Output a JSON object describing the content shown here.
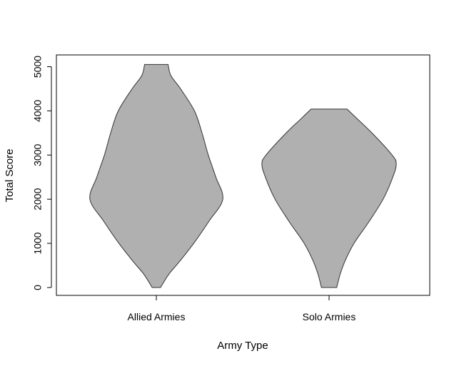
{
  "chart_data": {
    "type": "violin",
    "title": "",
    "xlabel": "Army Type",
    "ylabel": "Total Score",
    "ylim": [
      -200,
      5200
    ],
    "y_ticks": [
      "0",
      "1000",
      "2000",
      "3000",
      "4000",
      "5000"
    ],
    "categories": [
      "Allied Armies",
      "Solo Armies"
    ],
    "fill_color": "#b0b0b0",
    "outline_color": "#333333",
    "violins": [
      {
        "category": "Allied Armies",
        "min": 0,
        "max": 5050,
        "profile": [
          [
            0,
            0.06
          ],
          [
            300,
            0.18
          ],
          [
            600,
            0.34
          ],
          [
            1000,
            0.54
          ],
          [
            1500,
            0.76
          ],
          [
            2000,
            0.96
          ],
          [
            2500,
            0.86
          ],
          [
            3000,
            0.75
          ],
          [
            3500,
            0.66
          ],
          [
            4000,
            0.55
          ],
          [
            4500,
            0.35
          ],
          [
            4800,
            0.21
          ],
          [
            5050,
            0.17
          ]
        ]
      },
      {
        "category": "Solo Armies",
        "min": 0,
        "max": 4040,
        "profile": [
          [
            0,
            0.11
          ],
          [
            300,
            0.16
          ],
          [
            600,
            0.23
          ],
          [
            1000,
            0.36
          ],
          [
            1500,
            0.58
          ],
          [
            2000,
            0.78
          ],
          [
            2500,
            0.92
          ],
          [
            2800,
            0.97
          ],
          [
            3000,
            0.91
          ],
          [
            3500,
            0.62
          ],
          [
            3800,
            0.42
          ],
          [
            4040,
            0.26
          ]
        ]
      }
    ]
  }
}
